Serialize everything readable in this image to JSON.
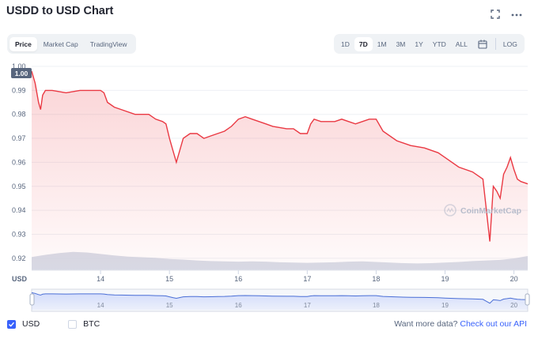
{
  "header": {
    "title": "USDD to USD Chart",
    "expand_icon": "fullscreen-icon",
    "more_icon": "more-horizontal-icon"
  },
  "tabs": [
    {
      "label": "Price",
      "active": true
    },
    {
      "label": "Market Cap",
      "active": false
    },
    {
      "label": "TradingView",
      "active": false
    }
  ],
  "ranges": [
    {
      "label": "1D",
      "active": false
    },
    {
      "label": "7D",
      "active": true
    },
    {
      "label": "1M",
      "active": false
    },
    {
      "label": "3M",
      "active": false
    },
    {
      "label": "1Y",
      "active": false
    },
    {
      "label": "YTD",
      "active": false
    },
    {
      "label": "ALL",
      "active": false
    }
  ],
  "log_label": "LOG",
  "calendar_icon": "calendar-icon",
  "watermark": "CoinMarketCap",
  "currency_label": "USD",
  "current_price_tag": "1.00",
  "colors": {
    "price_line": "#ea3943",
    "volume": "#d0d6e3",
    "accent": "#3861fb",
    "navigator_line": "#4b6fd6"
  },
  "chart_data": {
    "type": "line",
    "ylim": [
      0.915,
      1.0
    ],
    "y_ticks": [
      "1.00",
      "0.99",
      "0.98",
      "0.97",
      "0.96",
      "0.95",
      "0.94",
      "0.93",
      "0.92"
    ],
    "y_tick_values": [
      1.0,
      0.99,
      0.98,
      0.97,
      0.96,
      0.95,
      0.94,
      0.93,
      0.92
    ],
    "xlim": [
      13.0,
      20.2
    ],
    "x_ticks": [
      "14",
      "15",
      "16",
      "17",
      "18",
      "19",
      "20"
    ],
    "x_tick_values": [
      14,
      15,
      16,
      17,
      18,
      19,
      20
    ],
    "series": [
      {
        "x": [
          13.0,
          13.05,
          13.1,
          13.13,
          13.16,
          13.2,
          13.3,
          13.5,
          13.7,
          13.9,
          14.0,
          14.05,
          14.1,
          14.2,
          14.3,
          14.5,
          14.7,
          14.8,
          14.9,
          14.95,
          15.0,
          15.05,
          15.1,
          15.2,
          15.3,
          15.4,
          15.5,
          15.6,
          15.7,
          15.8,
          15.9,
          16.0,
          16.1,
          16.2,
          16.3,
          16.4,
          16.5,
          16.7,
          16.8,
          16.9,
          17.0,
          17.05,
          17.1,
          17.2,
          17.3,
          17.4,
          17.5,
          17.6,
          17.7,
          17.8,
          17.9,
          18.0,
          18.1,
          18.3,
          18.5,
          18.7,
          18.9,
          19.0,
          19.2,
          19.4,
          19.55,
          19.6,
          19.65,
          19.7,
          19.75,
          19.8,
          19.85,
          19.9,
          19.95,
          20.0,
          20.05,
          20.1,
          20.2
        ],
        "y": [
          0.998,
          0.993,
          0.985,
          0.982,
          0.988,
          0.99,
          0.99,
          0.989,
          0.99,
          0.99,
          0.99,
          0.989,
          0.985,
          0.983,
          0.982,
          0.98,
          0.98,
          0.978,
          0.977,
          0.976,
          0.97,
          0.965,
          0.96,
          0.97,
          0.972,
          0.972,
          0.97,
          0.971,
          0.972,
          0.973,
          0.975,
          0.978,
          0.979,
          0.978,
          0.977,
          0.976,
          0.975,
          0.974,
          0.974,
          0.972,
          0.972,
          0.976,
          0.978,
          0.977,
          0.977,
          0.977,
          0.978,
          0.977,
          0.976,
          0.977,
          0.978,
          0.978,
          0.973,
          0.969,
          0.967,
          0.966,
          0.964,
          0.962,
          0.958,
          0.956,
          0.953,
          0.94,
          0.927,
          0.95,
          0.948,
          0.945,
          0.955,
          0.958,
          0.962,
          0.957,
          0.953,
          0.952,
          0.951
        ]
      }
    ],
    "volume": [
      0.45,
      0.52,
      0.58,
      0.62,
      0.6,
      0.55,
      0.5,
      0.46,
      0.44,
      0.42,
      0.38,
      0.36,
      0.33,
      0.31,
      0.3,
      0.29,
      0.3,
      0.29,
      0.27,
      0.26,
      0.25,
      0.26,
      0.27,
      0.29,
      0.3,
      0.28,
      0.26,
      0.24,
      0.23,
      0.24,
      0.26,
      0.28,
      0.31,
      0.33,
      0.35,
      0.4,
      0.48
    ]
  },
  "footer": {
    "legend": [
      {
        "label": "USD",
        "checked": true
      },
      {
        "label": "BTC",
        "checked": false
      }
    ],
    "api_prefix": "Want more data?",
    "api_link": "Check out our API"
  }
}
